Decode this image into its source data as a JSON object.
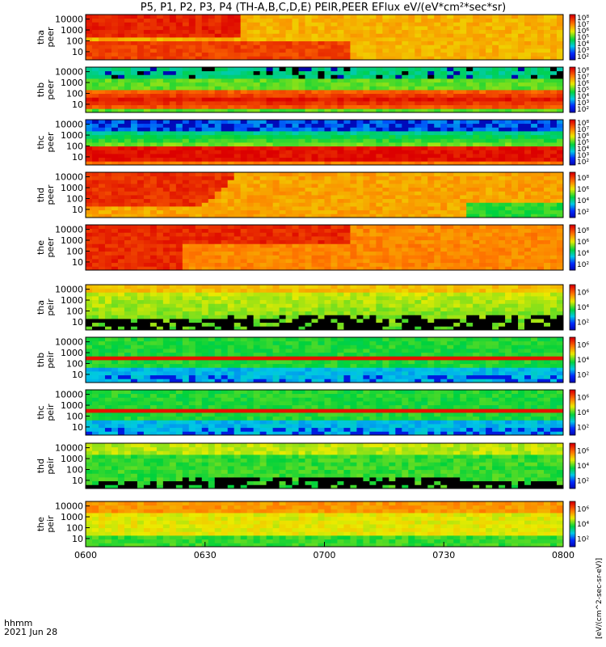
{
  "title": "P5, P1, P2, P3, P4 (TH-A,B,C,D,E) PEIR,PEER EFlux eV/(eV*cm²*sec*sr)",
  "x_axis": {
    "ticks": [
      "0600",
      "0630",
      "0700",
      "0730",
      "0800"
    ],
    "label_line1": "hhmm",
    "label_line2": "2021 Jun 28"
  },
  "colorbar_units": "[eV/(cm^2-sec-sr-eV)]",
  "chart_data": {
    "type": "heatmap",
    "x": [
      "06:00",
      "06:30",
      "07:00",
      "07:30",
      "08:00"
    ],
    "y_scale": "log",
    "y_ticks": [
      "10",
      "100",
      "1000",
      "10000"
    ],
    "colorscale": "rainbow (blue → green → yellow → red), black = no counts",
    "panels": [
      {
        "id": "tha-peer",
        "probe": "tha",
        "species": "peer",
        "ylabel": [
          "tha",
          "peer"
        ],
        "cbar_ticks": [
          "10²",
          "10³",
          "10⁴",
          "10⁵",
          "10⁶",
          "10⁷",
          "10⁸"
        ],
        "profile": "high",
        "hot_band": "wide-fade"
      },
      {
        "id": "thb-peer",
        "probe": "thb",
        "species": "peer",
        "ylabel": [
          "thb",
          "peer"
        ],
        "cbar_ticks": [
          "10²",
          "10³",
          "10⁴",
          "10⁵",
          "10⁶",
          "10⁷",
          "10⁸"
        ],
        "profile": "band"
      },
      {
        "id": "thc-peer",
        "probe": "thc",
        "species": "peer",
        "ylabel": [
          "thc",
          "peer"
        ],
        "cbar_ticks": [
          "10²",
          "10³",
          "10⁴",
          "10⁵",
          "10⁶",
          "10⁷",
          "10⁸"
        ],
        "profile": "band-blue"
      },
      {
        "id": "thd-peer",
        "probe": "thd",
        "species": "peer",
        "ylabel": [
          "thd",
          "peer"
        ],
        "cbar_ticks": [
          "10²",
          "10⁴",
          "10⁶",
          "10⁸"
        ],
        "profile": "high-fade"
      },
      {
        "id": "the-peer",
        "probe": "the",
        "species": "peer",
        "ylabel": [
          "the",
          "peer"
        ],
        "cbar_ticks": [
          "10²",
          "10⁴",
          "10⁶",
          "10⁸"
        ],
        "profile": "high-long"
      },
      {
        "id": "tha-peir",
        "probe": "tha",
        "species": "peir",
        "ylabel": [
          "tha",
          "peir"
        ],
        "cbar_ticks": [
          "10²",
          "10⁴",
          "10⁶"
        ],
        "profile": "ion-sparse"
      },
      {
        "id": "thb-peir",
        "probe": "thb",
        "species": "peir",
        "ylabel": [
          "thb",
          "peir"
        ],
        "cbar_ticks": [
          "10²",
          "10⁴",
          "10⁶"
        ],
        "profile": "ion-line"
      },
      {
        "id": "thc-peir",
        "probe": "thc",
        "species": "peir",
        "ylabel": [
          "thc",
          "peir"
        ],
        "cbar_ticks": [
          "10²",
          "10⁴",
          "10⁶"
        ],
        "profile": "ion-line"
      },
      {
        "id": "thd-peir",
        "probe": "thd",
        "species": "peir",
        "ylabel": [
          "thd",
          "peir"
        ],
        "cbar_ticks": [
          "10²",
          "10⁴",
          "10⁶"
        ],
        "profile": "ion-sparse-2"
      },
      {
        "id": "the-peir",
        "probe": "the",
        "species": "peir",
        "ylabel": [
          "the",
          "peir"
        ],
        "cbar_ticks": [
          "10²",
          "10⁴",
          "10⁶"
        ],
        "profile": "ion-warm"
      }
    ]
  }
}
